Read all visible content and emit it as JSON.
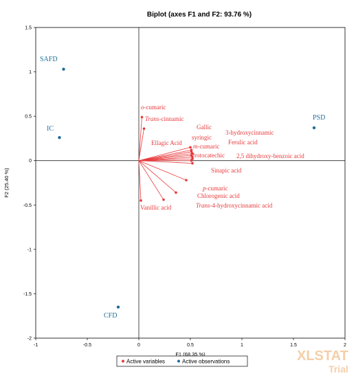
{
  "chart_data": {
    "type": "biplot",
    "title": "Biplot (axes F1 and F2: 93.76 %)",
    "xlabel": "F1 (68.35 %)",
    "ylabel": "F2 (25.40 %)",
    "xlim": [
      -1,
      2
    ],
    "ylim": [
      -2,
      1.5
    ],
    "xticks": [
      "-1",
      "-0.5",
      "0",
      "0.5",
      "1",
      "1.5",
      "2"
    ],
    "yticks": [
      "-2",
      "-1.5",
      "-1",
      "-0.5",
      "0",
      "0.5",
      "1",
      "1.5"
    ],
    "legend": {
      "position": "bottom",
      "items": [
        "Active variables",
        "Active observations"
      ]
    },
    "colors": {
      "variables": "#e8393b",
      "observations": "#1f6e99"
    },
    "variables": [
      {
        "name": "o-cumaric",
        "prefix": "o",
        "rest": "-cumaric",
        "x": 0.03,
        "y": 0.49
      },
      {
        "name": "Trans-cinnamic",
        "prefix": "Trans",
        "rest": "-cinnamic",
        "x": 0.05,
        "y": 0.36
      },
      {
        "name": "Gallic",
        "prefix": "",
        "rest": "Gallic",
        "x": 0.5,
        "y": 0.15
      },
      {
        "name": "3-hydroxycinnamic",
        "prefix": "",
        "rest": "3-hydroxycinnamic",
        "x": 0.51,
        "y": 0.12
      },
      {
        "name": "syringic",
        "prefix": "",
        "rest": "syringic",
        "x": 0.51,
        "y": 0.1
      },
      {
        "name": "Ferulic acid",
        "prefix": "",
        "rest": "Ferulic acid",
        "x": 0.52,
        "y": 0.08
      },
      {
        "name": "Ellagic Acid",
        "prefix": "",
        "rest": "Ellagic Acid",
        "x": 0.51,
        "y": 0.06
      },
      {
        "name": "m-cumaric",
        "prefix": "m",
        "rest": "-cumaric",
        "x": 0.52,
        "y": 0.04
      },
      {
        "name": "2,5 dihydroxy-benzoic acid",
        "prefix": "",
        "rest": "2,5 dihydroxy-benzoic acid",
        "x": 0.52,
        "y": 0.02
      },
      {
        "name": "Protocatechic",
        "prefix": "",
        "rest": "Protocatechic",
        "x": 0.51,
        "y": 0.0
      },
      {
        "name": "Sinapic acid",
        "prefix": "",
        "rest": "Sinapic acid",
        "x": 0.52,
        "y": -0.03
      },
      {
        "name": "p-cumaric",
        "prefix": "p",
        "rest": "-cumaric",
        "x": 0.46,
        "y": -0.22
      },
      {
        "name": "Chlorogenic acid",
        "prefix": "",
        "rest": "Chlorogenic acid",
        "x": 0.36,
        "y": -0.36
      },
      {
        "name": "Trans-4-hydroxycinnamic acid",
        "prefix": "Trans",
        "rest": "-4-hydroxycinnamic acid",
        "x": 0.24,
        "y": -0.44
      },
      {
        "name": "Vanillic acid",
        "prefix": "",
        "rest": "Vanillic acid",
        "x": 0.02,
        "y": -0.45
      }
    ],
    "observations": [
      {
        "name": "SAFD",
        "x": -0.73,
        "y": 1.03
      },
      {
        "name": "IC",
        "x": -0.77,
        "y": 0.26
      },
      {
        "name": "PSD",
        "x": 1.7,
        "y": 0.37
      },
      {
        "name": "CFD",
        "x": -0.2,
        "y": -1.65
      }
    ]
  },
  "watermark": {
    "line1": "XLSTAT",
    "line2": "Trial"
  }
}
